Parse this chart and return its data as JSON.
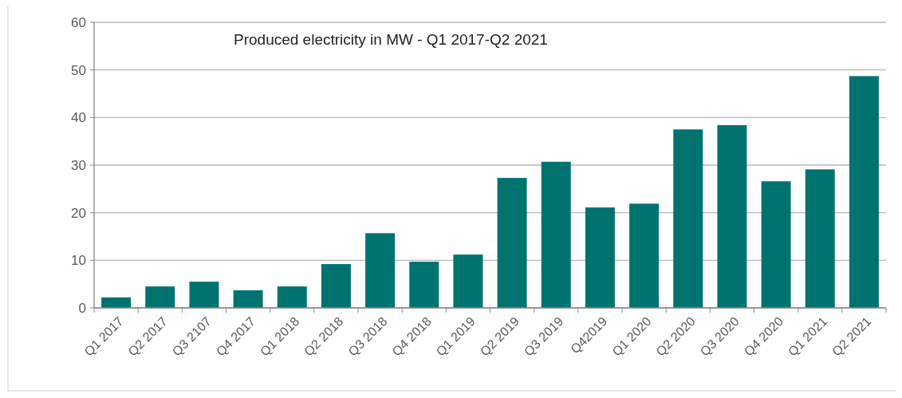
{
  "chart_data": {
    "type": "bar",
    "title": "Produced electricity in MW - Q1 2017-Q2 2021",
    "categories": [
      "Q1 2017",
      "Q2 2017",
      "Q3 2107",
      "Q4 2017",
      "Q1 2018",
      "Q2 2018",
      "Q3 2018",
      "Q4 2018",
      "Q1 2019",
      "Q2 2019",
      "Q3 2019",
      "Q42019",
      "Q1 2020",
      "Q2 2020",
      "Q3 2020",
      "Q4 2020",
      "Q1 2021",
      "Q2 2021"
    ],
    "values": [
      2.2,
      4.5,
      5.5,
      3.7,
      4.5,
      9.2,
      15.7,
      9.7,
      11.2,
      27.3,
      30.7,
      21.1,
      21.9,
      37.5,
      38.4,
      26.6,
      29.1,
      48.7
    ],
    "color": "#007370",
    "ylim": [
      0,
      60
    ],
    "yticks": [
      0,
      10,
      20,
      30,
      40,
      50,
      60
    ],
    "grid": "y"
  }
}
